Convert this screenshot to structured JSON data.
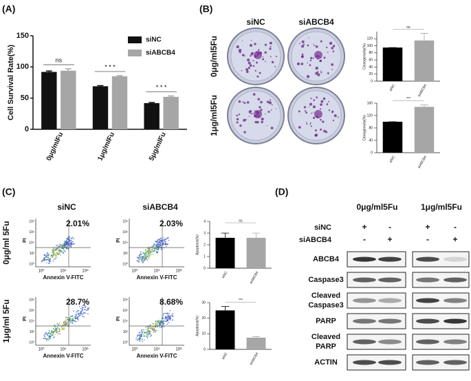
{
  "panel_labels": [
    "(A)",
    "(B)",
    "(C)",
    "(D)"
  ],
  "chart_data": [
    {
      "type": "bar",
      "ylabel": "Cell Survival Rate(%)",
      "categories": [
        "0μg/mlFu",
        "1μg/mlFu",
        "5μg/mlFu"
      ],
      "series": [
        {
          "name": "siNC",
          "color": "#111111",
          "values": [
            92,
            69,
            42
          ],
          "errors": [
            1.5,
            1,
            1
          ]
        },
        {
          "name": "siABCB4",
          "color": "#a6a6a6",
          "values": [
            94,
            85,
            52
          ],
          "errors": [
            3,
            1,
            1.5
          ]
        }
      ],
      "significance": [
        "ns",
        "* * *",
        "* * *"
      ],
      "ylim": [
        0,
        150
      ],
      "yticks": [
        0,
        50,
        100,
        150
      ],
      "legend": "top-right"
    },
    {
      "type": "bar",
      "ylabel": "Clonogenicity(%)",
      "categories": [
        "siNC",
        "siABCB4"
      ],
      "values": [
        95,
        115
      ],
      "errors": [
        0,
        20
      ],
      "colors": [
        "#000000",
        "#a6a6a6"
      ],
      "significance": "ns",
      "ylim": [
        0,
        140
      ],
      "yticks": [
        0,
        20,
        40,
        60,
        80,
        100,
        120
      ]
    },
    {
      "type": "bar",
      "ylabel": "Clonogenicity(%)",
      "categories": [
        "siNC",
        "siABCB4"
      ],
      "values": [
        100,
        148
      ],
      "errors": [
        0,
        6
      ],
      "colors": [
        "#000000",
        "#a6a6a6"
      ],
      "significance": "***",
      "ylim": [
        0,
        160
      ],
      "yticks": [
        0,
        40,
        80,
        120,
        160
      ]
    },
    {
      "type": "bar",
      "ylabel": "Apoptosis(%)",
      "categories": [
        "siNC",
        "siABCB4"
      ],
      "values": [
        2.6,
        2.6
      ],
      "errors": [
        0.4,
        0.4
      ],
      "colors": [
        "#000000",
        "#a6a6a6"
      ],
      "significance": "ns",
      "ylim": [
        0,
        4
      ],
      "yticks": [
        0,
        1,
        2,
        3,
        4
      ]
    },
    {
      "type": "bar",
      "ylabel": "Apoptosis(%)",
      "categories": [
        "siNC",
        "siABCB4"
      ],
      "values": [
        25,
        7.5
      ],
      "errors": [
        2.5,
        0.7
      ],
      "colors": [
        "#000000",
        "#a6a6a6"
      ],
      "significance": "***",
      "ylim": [
        0,
        30
      ],
      "yticks": [
        0,
        10,
        20,
        30
      ]
    }
  ],
  "clonogenic": {
    "columns": [
      "siNC",
      "siABCB4"
    ],
    "rows": [
      "0μg/ml5Fu",
      "1μg/ml5Fu"
    ]
  },
  "flow": {
    "columns": [
      "siNC",
      "siABCB4"
    ],
    "rows": [
      "0μg/ml 5Fu",
      "1μg/ml 5Fu"
    ],
    "percentages": [
      [
        "2.01%",
        "2.03%"
      ],
      [
        "28.7%",
        "8.68%"
      ]
    ],
    "y_axis": "PI",
    "x_axis": "Annexin V-FITC",
    "x_ticks": [
      "10⁰",
      "10⁴",
      "10⁸"
    ],
    "y_ticks": [
      "10⁸",
      "10⁶",
      "10⁴",
      "10²",
      "10⁰"
    ]
  },
  "western": {
    "conditions": [
      "0μg/ml5Fu",
      "1μg/ml5Fu"
    ],
    "rows": [
      {
        "label": "siNC",
        "signs": [
          "+",
          "-",
          "+",
          "-"
        ]
      },
      {
        "label": "siABCB4",
        "signs": [
          "-",
          "+",
          "-",
          "+"
        ]
      }
    ],
    "proteins": [
      [
        "ABCB4"
      ],
      [
        "Caspase3"
      ],
      [
        "Cleaved",
        "Caspase3"
      ],
      [
        "PARP"
      ],
      [
        "Cleaved",
        "PARP"
      ],
      [
        "ACTIN"
      ]
    ]
  }
}
